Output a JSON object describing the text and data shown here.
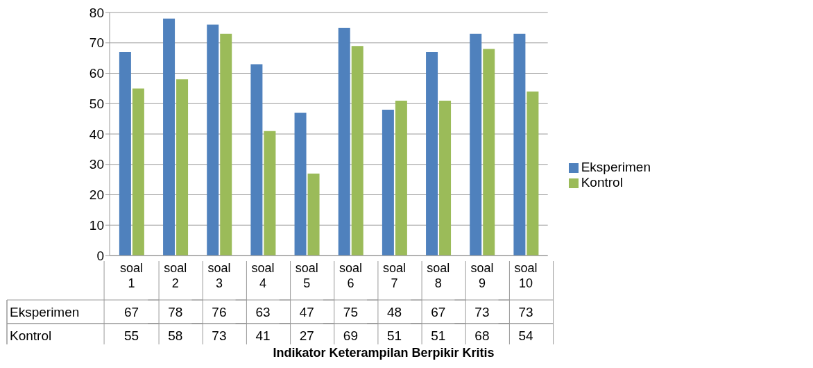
{
  "chart_data": {
    "type": "bar",
    "xlabel": "Indikator Keterampilan Berpikir Kritis",
    "categories": [
      "soal 1",
      "soal 2",
      "soal 3",
      "soal 4",
      "soal 5",
      "soal 6",
      "soal 7",
      "soal 8",
      "soal 9",
      "soal 10"
    ],
    "series": [
      {
        "name": "Eksperimen",
        "color": "#4f81bd",
        "values": [
          67,
          78,
          76,
          63,
          47,
          75,
          48,
          67,
          73,
          73
        ]
      },
      {
        "name": "Kontrol",
        "color": "#9bbb59",
        "values": [
          55,
          58,
          73,
          41,
          27,
          69,
          51,
          51,
          68,
          54
        ]
      }
    ],
    "ylim": [
      0,
      80
    ],
    "yticks": [
      0,
      10,
      20,
      30,
      40,
      50,
      60,
      70,
      80
    ],
    "grid": "y",
    "legend": "right",
    "data_labels": true
  }
}
